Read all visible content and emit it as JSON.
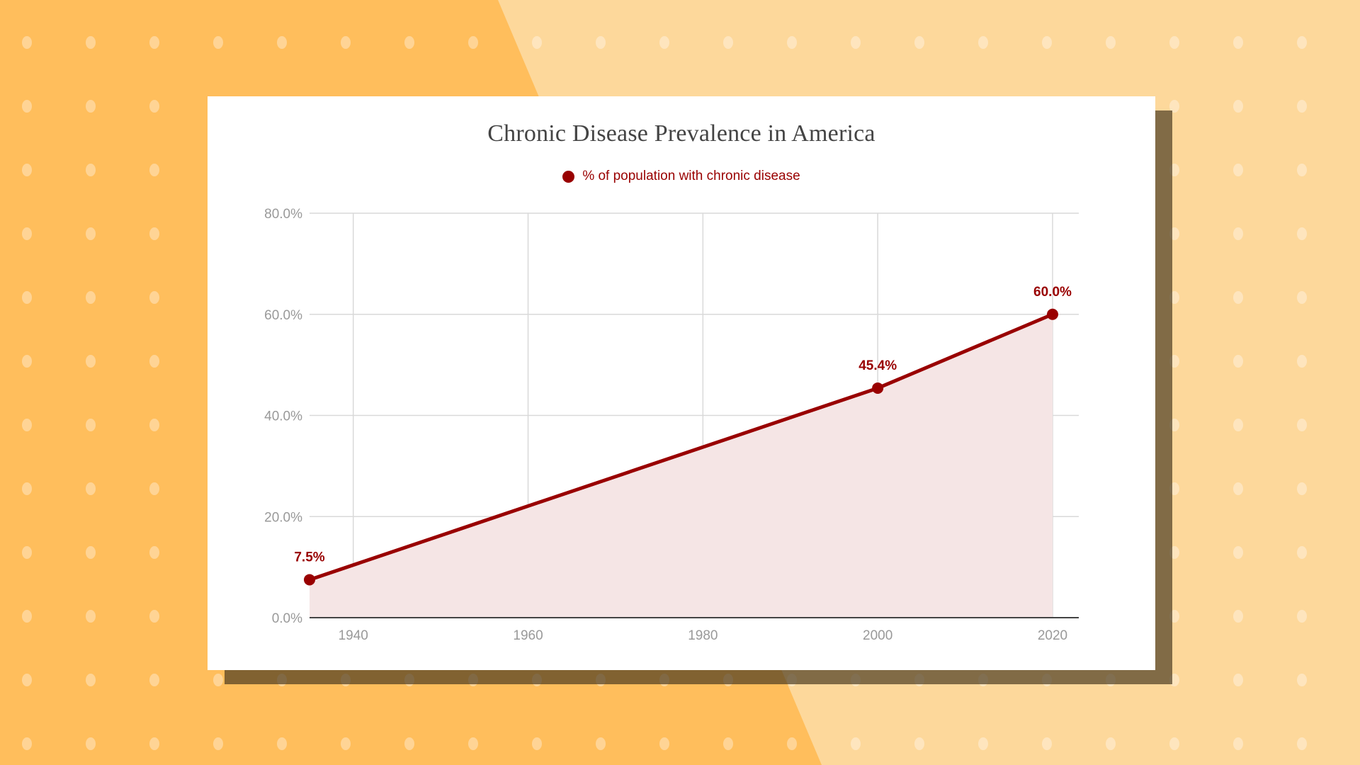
{
  "colors": {
    "background_left": "#FFBE5C",
    "background_right": "#FDD89B",
    "series": "#990000",
    "area_fill": "#F5E5E5",
    "grid": "#D9D9D9",
    "axis": "#444444"
  },
  "chart_data": {
    "type": "area",
    "title": "Chronic Disease Prevalence in America",
    "xlabel": "",
    "ylabel": "",
    "legend_position": "top",
    "grid": true,
    "xlim": [
      1935,
      2023
    ],
    "ylim": [
      0,
      80
    ],
    "x_ticks": [
      1940,
      1960,
      1980,
      2000,
      2020
    ],
    "y_ticks": [
      0,
      20,
      40,
      60,
      80
    ],
    "x_tick_labels": [
      "1940",
      "1960",
      "1980",
      "2000",
      "2020"
    ],
    "y_tick_labels": [
      "0.0%",
      "20.0%",
      "40.0%",
      "60.0%",
      "80.0%"
    ],
    "series": [
      {
        "name": "% of population with chronic disease",
        "x": [
          1935,
          2000,
          2020
        ],
        "y": [
          7.5,
          45.4,
          60.0
        ],
        "labels": [
          "7.5%",
          "45.4%",
          "60.0%"
        ]
      }
    ]
  }
}
